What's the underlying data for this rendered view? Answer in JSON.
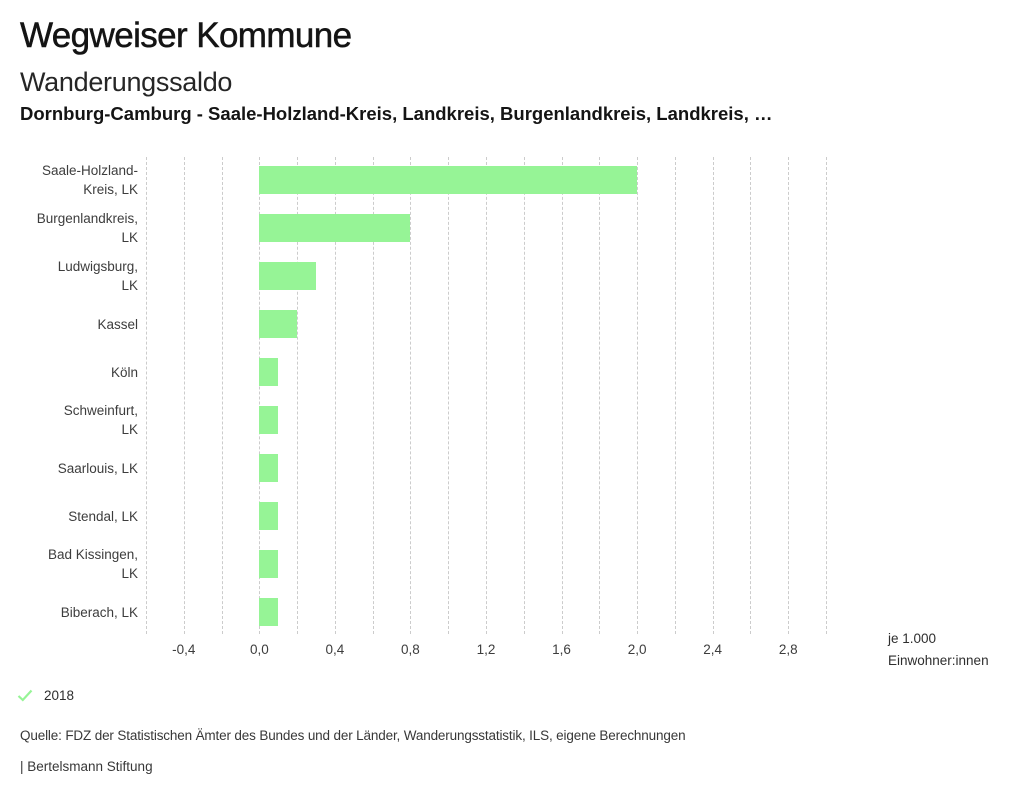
{
  "header": {
    "title": "Wegweiser Kommune",
    "subtitle": "Wanderungssaldo",
    "context": "Dornburg-Camburg - Saale-Holzland-Kreis, Landkreis, Burgenlandkreis, Landkreis, …"
  },
  "chart_data": {
    "type": "bar",
    "orientation": "horizontal",
    "title": "Wanderungssaldo",
    "categories": [
      "Saale-Holzland-Kreis, LK",
      "Burgenlandkreis, LK",
      "Ludwigsburg, LK",
      "Kassel",
      "Köln",
      "Schweinfurt, LK",
      "Saarlouis, LK",
      "Stendal, LK",
      "Bad Kissingen, LK",
      "Biberach, LK"
    ],
    "category_lines": [
      [
        "Saale-Holzland-",
        "Kreis, LK"
      ],
      [
        "Burgenlandkreis,",
        "LK"
      ],
      [
        "Ludwigsburg,",
        "LK"
      ],
      [
        "Kassel"
      ],
      [
        "Köln"
      ],
      [
        "Schweinfurt,",
        "LK"
      ],
      [
        "Saarlouis, LK"
      ],
      [
        "Stendal, LK"
      ],
      [
        "Bad Kissingen,",
        "LK"
      ],
      [
        "Biberach, LK"
      ]
    ],
    "series": [
      {
        "name": "2018",
        "values": [
          2.0,
          0.8,
          0.3,
          0.2,
          0.1,
          0.1,
          0.1,
          0.1,
          0.1,
          0.1
        ]
      }
    ],
    "xlim": [
      -0.6,
      3.0
    ],
    "grid_step": 0.2,
    "tick_labels": [
      "-0,4",
      "0,0",
      "0,4",
      "0,8",
      "1,2",
      "1,6",
      "2,0",
      "2,4",
      "2,8"
    ],
    "unit_line1": "je 1.000",
    "unit_line2": "Einwohner:innen",
    "bar_color": "#96f496",
    "grid_color": "#cccccc",
    "grid_style": "dashed",
    "legend_position": "bottom-left"
  },
  "legend": {
    "year": "2018",
    "marker": "check",
    "color": "#96f496"
  },
  "footer": {
    "source": "Quelle: FDZ der Statistischen Ämter des Bundes und der Länder, Wanderungsstatistik, ILS, eigene Berechnungen",
    "brand": "| Bertelsmann Stiftung"
  }
}
